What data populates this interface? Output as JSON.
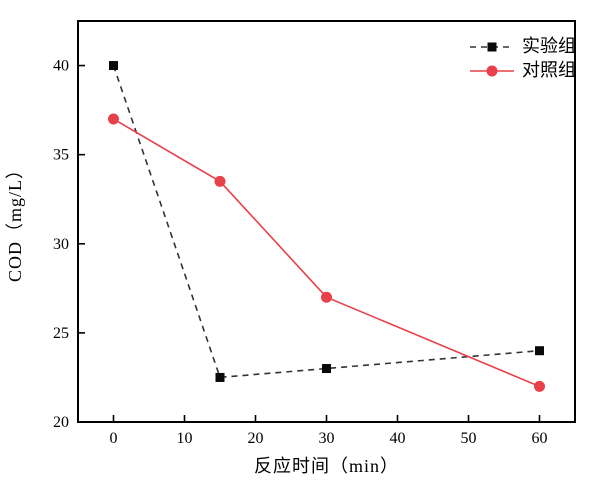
{
  "chart_data": {
    "type": "line",
    "title": "",
    "xlabel": "反应时间（min）",
    "ylabel": "COD（mg/L）",
    "x": [
      0,
      15,
      30,
      60
    ],
    "series": [
      {
        "name": "实验组",
        "values": [
          40,
          22.5,
          23,
          24
        ],
        "line_color": "#333333",
        "marker_color": "#0a0a0a",
        "marker": "square",
        "line_style": "dashed"
      },
      {
        "name": "对照组",
        "values": [
          37,
          33.5,
          27,
          22
        ],
        "line_color": "#e8414a",
        "marker_color": "#e8414a",
        "marker": "circle",
        "line_style": "solid"
      }
    ],
    "xlim": [
      -5,
      65
    ],
    "ylim": [
      20,
      42.5
    ],
    "x_ticks": [
      0,
      10,
      20,
      30,
      40,
      50,
      60
    ],
    "y_ticks": [
      20,
      25,
      30,
      35,
      40
    ],
    "legend_position": "top-right",
    "grid": false,
    "axis_color": "#000000",
    "background": "#ffffff"
  }
}
